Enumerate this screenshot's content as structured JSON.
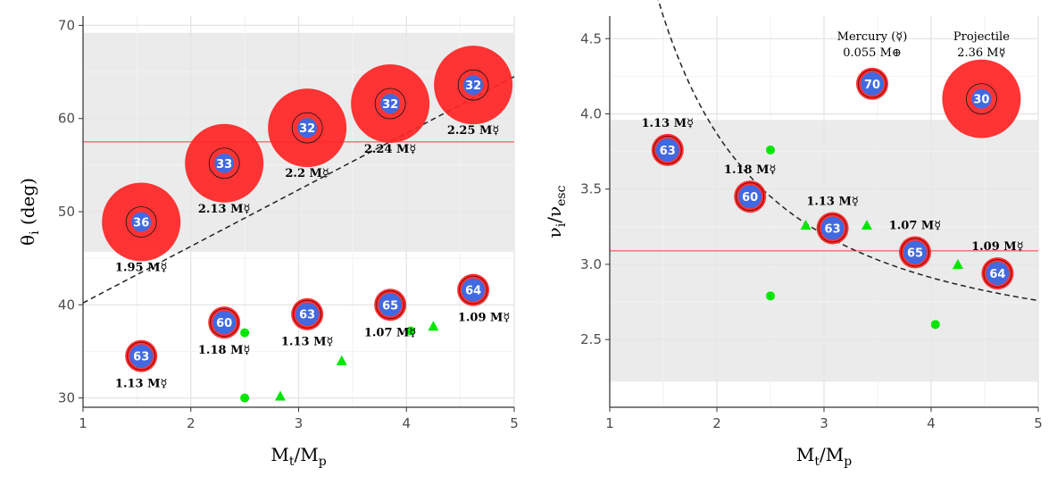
{
  "chart_data": [
    {
      "type": "scatter",
      "xlabel_main": "M",
      "xlabel_sub1": "t",
      "xlabel_sep": "/M",
      "xlabel_sub2": "p",
      "ylabel_main": "θ",
      "ylabel_sub": "i",
      "ylabel_tail": " (deg)",
      "xlim": [
        1,
        5
      ],
      "ylim": [
        29,
        71
      ],
      "x_ticks": [
        1,
        2,
        3,
        4,
        5
      ],
      "y_ticks": [
        30,
        40,
        50,
        60,
        70
      ],
      "grid": true,
      "shaded_band": [
        45.7,
        69.2
      ],
      "hline": 57.5,
      "trend": [
        [
          1,
          40.2
        ],
        [
          5,
          64.5
        ]
      ],
      "large_bubbles": [
        {
          "x": 1.54,
          "y": 48.9,
          "num": "36",
          "mass": 1.95,
          "label": "1.95 M☿"
        },
        {
          "x": 2.31,
          "y": 55.2,
          "num": "33",
          "mass": 2.13,
          "label": "2.13 M☿"
        },
        {
          "x": 3.08,
          "y": 59.0,
          "num": "32",
          "mass": 2.2,
          "label": "2.2 M☿"
        },
        {
          "x": 3.85,
          "y": 61.6,
          "num": "32",
          "mass": 2.24,
          "label": "2.24 M☿"
        },
        {
          "x": 4.62,
          "y": 63.6,
          "num": "32",
          "mass": 2.25,
          "label": "2.25 M☿"
        }
      ],
      "small_bubbles": [
        {
          "x": 1.54,
          "y": 34.5,
          "num": "63",
          "label": "1.13 M☿"
        },
        {
          "x": 2.31,
          "y": 38.1,
          "num": "60",
          "label": "1.18 M☿"
        },
        {
          "x": 3.08,
          "y": 39.0,
          "num": "63",
          "label": "1.13 M☿"
        },
        {
          "x": 3.85,
          "y": 40.0,
          "num": "65",
          "label": "1.07 M☿"
        },
        {
          "x": 4.62,
          "y": 41.6,
          "num": "64",
          "label": "1.09 M☿"
        }
      ],
      "green_circles": [
        [
          2.5,
          37.0
        ],
        [
          2.5,
          30.0
        ],
        [
          4.04,
          37.2
        ]
      ],
      "green_triangles": [
        [
          2.83,
          30.2
        ],
        [
          3.4,
          34.0
        ],
        [
          4.25,
          37.7
        ]
      ]
    },
    {
      "type": "scatter",
      "xlabel_main": "M",
      "xlabel_sub1": "t",
      "xlabel_sep": "/M",
      "xlabel_sub2": "p",
      "ylabel_main": "ν",
      "ylabel_sub": "i",
      "ylabel_sep": "/ν",
      "ylabel_sub2": "esc",
      "xlim": [
        1,
        5
      ],
      "ylim": [
        2.05,
        4.65
      ],
      "x_ticks": [
        1,
        2,
        3,
        4,
        5
      ],
      "y_ticks": [
        "2.5",
        "3.0",
        "3.5",
        "4.0",
        "4.5"
      ],
      "grid": true,
      "shaded_band": [
        2.22,
        3.96
      ],
      "hline": 3.09,
      "trend_func": "v = 2.36 + 4.12/x^1.45",
      "small_bubbles": [
        {
          "x": 1.54,
          "y": 3.76,
          "num": "63",
          "label": "1.13 M☿"
        },
        {
          "x": 2.31,
          "y": 3.45,
          "num": "60",
          "label": "1.18 M☿"
        },
        {
          "x": 3.08,
          "y": 3.24,
          "num": "63",
          "label": "1.13 M☿"
        },
        {
          "x": 3.85,
          "y": 3.08,
          "num": "65",
          "label": "1.07 M☿"
        },
        {
          "x": 4.62,
          "y": 2.94,
          "num": "64",
          "label": "1.09 M☿"
        }
      ],
      "green_circles": [
        [
          2.5,
          3.76
        ],
        [
          2.5,
          2.79
        ],
        [
          4.04,
          2.6
        ]
      ],
      "green_triangles": [
        [
          2.83,
          3.26
        ],
        [
          3.4,
          3.26
        ],
        [
          4.25,
          3.0
        ]
      ],
      "legend_items": [
        {
          "x": 3.45,
          "y": 4.2,
          "num": "70",
          "title": "Mercury (☿)",
          "sub": "0.055 M⊕",
          "kind": "small"
        },
        {
          "x": 4.47,
          "y": 4.1,
          "num": "30",
          "title": "Projectile",
          "sub": "2.36 M☿",
          "kind": "large"
        }
      ]
    }
  ],
  "colors": {
    "bubble_red": "#ff2424",
    "core_blue": "#4169e1",
    "green": "#00e600",
    "band": "#ebebeb",
    "hline": "#ef7f7f",
    "grid": "#ffffff"
  }
}
